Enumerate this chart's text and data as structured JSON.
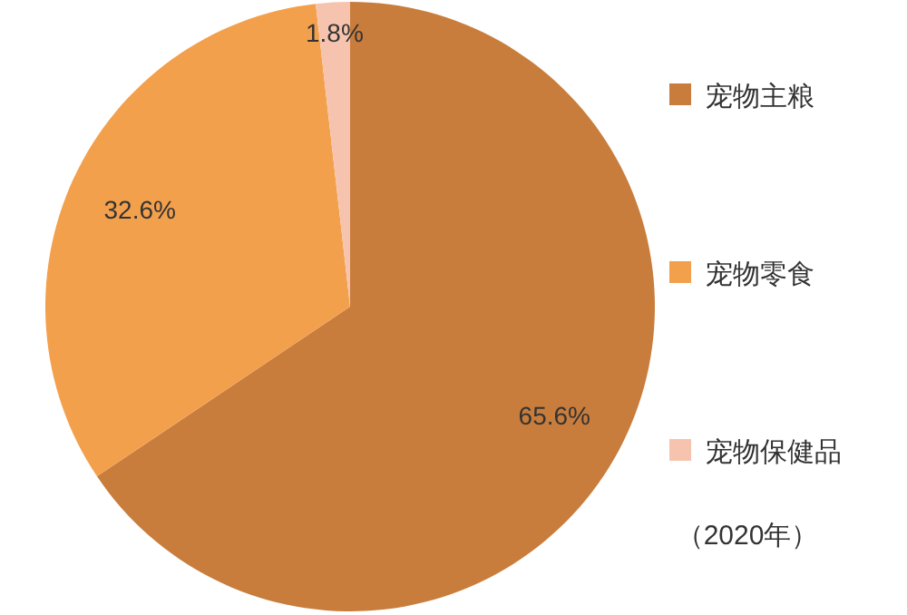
{
  "chart_data": {
    "type": "pie",
    "categories": [
      "宠物主粮",
      "宠物零食",
      "宠物保健品"
    ],
    "values": [
      65.6,
      32.6,
      1.8
    ],
    "colors": [
      "#c97d3c",
      "#f3a04c",
      "#f6c4ae"
    ],
    "value_labels": [
      "65.6%",
      "32.6%",
      "1.8%"
    ],
    "legend": "right",
    "annotations": [
      "（2020年）"
    ]
  }
}
